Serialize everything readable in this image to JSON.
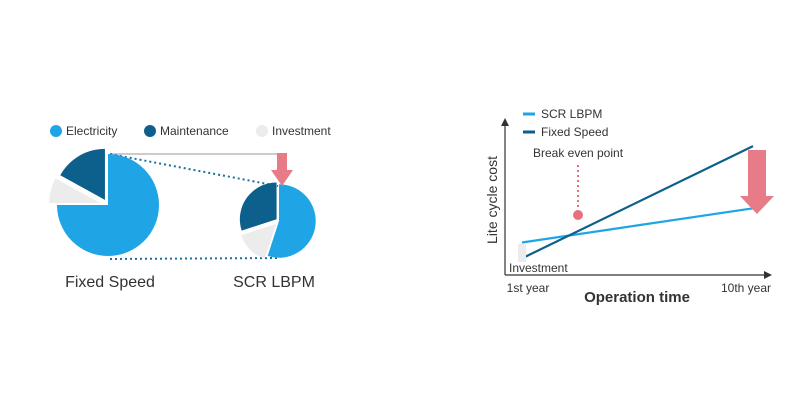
{
  "colors": {
    "electricity": "#1fa5e6",
    "maintenance": "#0d5f8c",
    "investment": "#ececec",
    "arrow": "#e87b88",
    "marker": "#e8707e",
    "axis": "#333333",
    "text": "#333333"
  },
  "chart_data": [
    {
      "type": "pie",
      "title": "",
      "legend": {
        "placement": "top",
        "entries": [
          "Electricity",
          "Maintenance",
          "Investment"
        ]
      },
      "pies": [
        {
          "name": "Fixed Speed",
          "relative_size": 1.0,
          "slices": [
            {
              "label": "Electricity",
              "value": 75
            },
            {
              "label": "Investment",
              "value": 8
            },
            {
              "label": "Maintenance",
              "value": 17
            }
          ]
        },
        {
          "name": "SCR LBPM",
          "relative_size": 0.72,
          "slices": [
            {
              "label": "Electricity",
              "value": 55
            },
            {
              "label": "Investment",
              "value": 15
            },
            {
              "label": "Maintenance",
              "value": 30
            }
          ]
        }
      ],
      "annotation": "reduction arrow from Fixed Speed to SCR LBPM"
    },
    {
      "type": "line",
      "title": "",
      "xlabel": "Operation time",
      "ylabel": "Lite cycle cost",
      "x_tick_labels": [
        "1st year",
        "10th year"
      ],
      "x": [
        1,
        10
      ],
      "ylim": [
        0,
        100
      ],
      "legend": {
        "placement": "top-left",
        "entries": [
          "SCR LBPM",
          "Fixed Speed"
        ]
      },
      "series": [
        {
          "name": "SCR LBPM",
          "values": [
            16,
            44
          ]
        },
        {
          "name": "Fixed Speed",
          "values": [
            3,
            95
          ]
        }
      ],
      "annotations": [
        {
          "text": "Break even point",
          "x": 3.5,
          "y": 40
        },
        {
          "text": "Investment",
          "x": 1,
          "y": 10
        }
      ]
    }
  ]
}
